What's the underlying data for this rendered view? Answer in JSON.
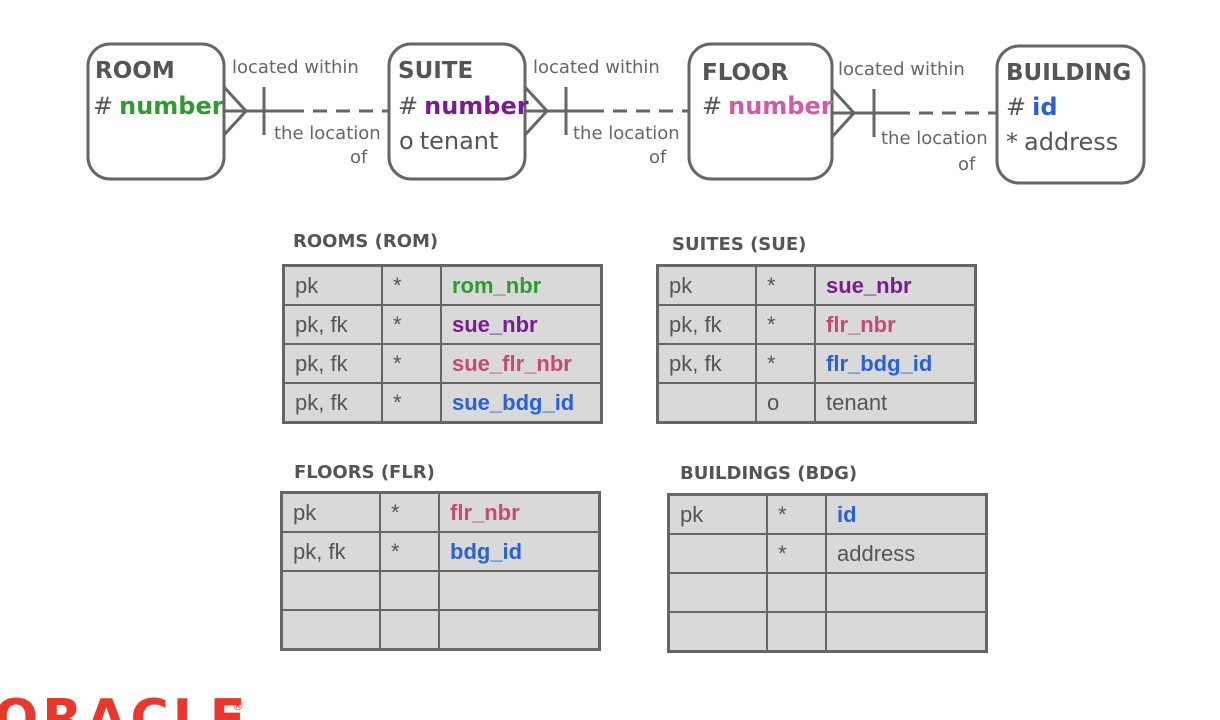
{
  "colors": {
    "green": "#2f9a31",
    "purple": "#7a1c8f",
    "pink": "#d05aa6",
    "rose": "#c24c77",
    "blue": "#2a62d6",
    "gray": "#555555",
    "oracle_red": "#e8372c"
  },
  "entities": [
    {
      "title": "ROOM",
      "attrs": [
        {
          "symbol": "#",
          "name": "number",
          "color": "green",
          "bold": true
        }
      ]
    },
    {
      "title": "SUITE",
      "attrs": [
        {
          "symbol": "#",
          "name": "number",
          "color": "purple",
          "bold": true
        },
        {
          "symbol": "o",
          "name": "tenant",
          "color": "gray",
          "bold": false
        }
      ]
    },
    {
      "title": "FLOOR",
      "attrs": [
        {
          "symbol": "#",
          "name": "number",
          "color": "pink",
          "bold": true
        }
      ]
    },
    {
      "title": "BUILDING",
      "attrs": [
        {
          "symbol": "#",
          "name": "id",
          "color": "blue",
          "bold": true
        },
        {
          "symbol": "*",
          "name": "address",
          "color": "gray",
          "bold": false
        }
      ]
    }
  ],
  "relationships": [
    {
      "from_label": "located within",
      "to_label_line1": "the location",
      "to_label_line2": "of"
    },
    {
      "from_label": "located within",
      "to_label_line1": "the location",
      "to_label_line2": "of"
    },
    {
      "from_label": "located within",
      "to_label_line1": "the location",
      "to_label_line2": "of"
    }
  ],
  "tables": [
    {
      "title": "ROOMS (ROM)",
      "rows": [
        {
          "key": "pk",
          "opt": "*",
          "col": "rom_nbr",
          "color": "green",
          "bold": true
        },
        {
          "key": "pk, fk",
          "opt": "*",
          "col": "sue_nbr",
          "color": "purple",
          "bold": true
        },
        {
          "key": "pk, fk",
          "opt": "*",
          "col": "sue_flr_nbr",
          "color": "rose",
          "bold": true
        },
        {
          "key": "pk, fk",
          "opt": "*",
          "col": "sue_bdg_id",
          "color": "blue",
          "bold": true
        }
      ]
    },
    {
      "title": "SUITES (SUE)",
      "rows": [
        {
          "key": "pk",
          "opt": "*",
          "col": "sue_nbr",
          "color": "purple",
          "bold": true
        },
        {
          "key": "pk, fk",
          "opt": "*",
          "col": "flr_nbr",
          "color": "rose",
          "bold": true
        },
        {
          "key": "pk, fk",
          "opt": "*",
          "col": "flr_bdg_id",
          "color": "blue",
          "bold": true
        },
        {
          "key": "",
          "opt": "o",
          "col": "tenant",
          "color": "gray",
          "bold": false
        }
      ]
    },
    {
      "title": "FLOORS (FLR)",
      "rows": [
        {
          "key": "pk",
          "opt": "*",
          "col": "flr_nbr",
          "color": "rose",
          "bold": true
        },
        {
          "key": "pk, fk",
          "opt": "*",
          "col": "bdg_id",
          "color": "blue",
          "bold": true
        },
        {
          "key": "",
          "opt": "",
          "col": "",
          "color": "gray",
          "bold": false
        },
        {
          "key": "",
          "opt": "",
          "col": "",
          "color": "gray",
          "bold": false
        }
      ]
    },
    {
      "title": "BUILDINGS (BDG)",
      "rows": [
        {
          "key": "pk",
          "opt": "*",
          "col": "id",
          "color": "blue",
          "bold": true
        },
        {
          "key": "",
          "opt": "*",
          "col": "address",
          "color": "gray",
          "bold": false
        },
        {
          "key": "",
          "opt": "",
          "col": "",
          "color": "gray",
          "bold": false
        },
        {
          "key": "",
          "opt": "",
          "col": "",
          "color": "gray",
          "bold": false
        }
      ]
    }
  ],
  "logo": {
    "text": "ORACLE",
    "mark": "®"
  }
}
